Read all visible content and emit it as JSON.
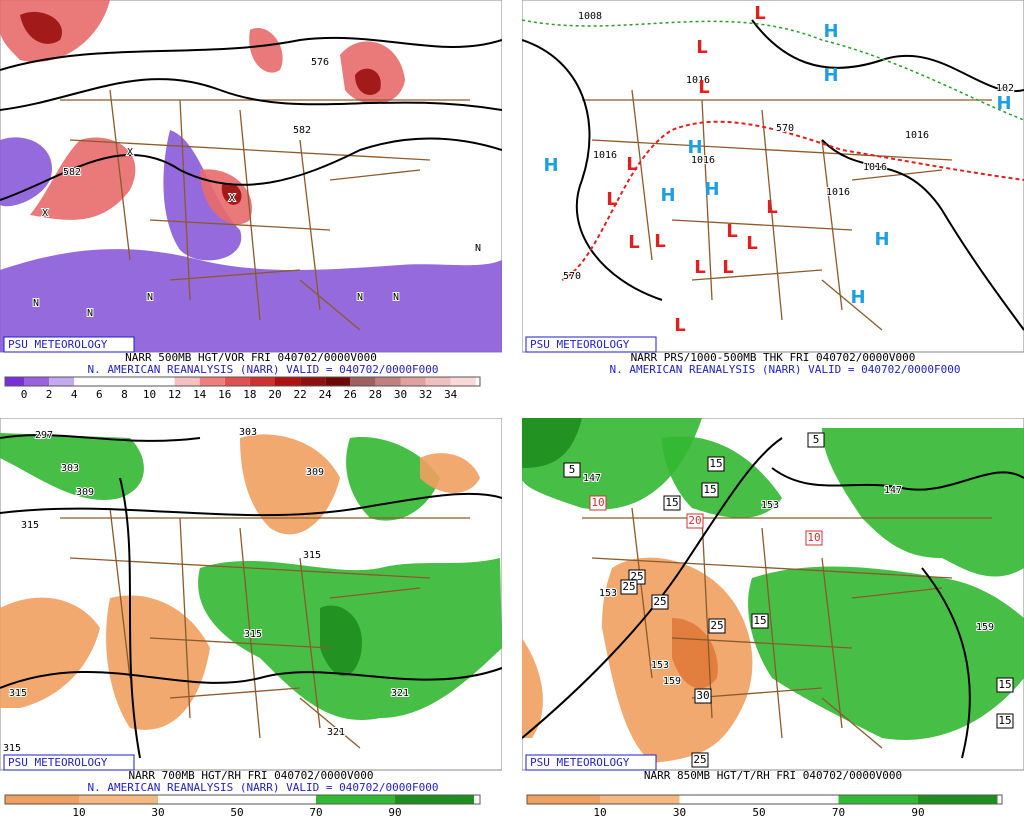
{
  "panels": [
    {
      "badge": "PSU METEOROLOGY",
      "caption_line1": "NARR 500MB HGT/VOR FRI 040702/0000V000",
      "caption_line2": "N. AMERICAN REANALYSIS (NARR) VALID = 040702/0000F000",
      "colorbar_labels": [
        "0",
        "2",
        "4",
        "6",
        "8",
        "10",
        "12",
        "14",
        "16",
        "18",
        "20",
        "22",
        "24",
        "26",
        "28",
        "30",
        "32",
        "34"
      ],
      "map_labels": [
        "576",
        "582",
        "582",
        "X",
        "X",
        "X",
        "N",
        "N",
        "N",
        "N",
        "N",
        "N"
      ]
    },
    {
      "badge": "PSU METEOROLOGY",
      "caption_line1": "NARR PRS/1000-500MB THK FRI 040702/0000V000",
      "caption_line2": "N. AMERICAN REANALYSIS (NARR) VALID = 040702/0000F000",
      "colorbar_labels": [],
      "map_labels": [
        "1008",
        "1016",
        "1016",
        "1016",
        "1016",
        "1016",
        "1016",
        "570",
        "570",
        "102",
        "H",
        "H",
        "H",
        "H",
        "H",
        "H",
        "H",
        "H",
        "H",
        "L",
        "L",
        "L",
        "L",
        "L",
        "L",
        "L",
        "L",
        "L",
        "L",
        "L",
        "L",
        "L"
      ]
    },
    {
      "badge": "PSU METEOROLOGY",
      "caption_line1": "NARR 700MB HGT/RH FRI 040702/0000V000",
      "caption_line2": "N. AMERICAN REANALYSIS (NARR) VALID = 040702/0000F000",
      "colorbar_labels": [
        "10",
        "30",
        "50",
        "70",
        "90"
      ],
      "map_labels": [
        "297",
        "303",
        "309",
        "315",
        "309",
        "315",
        "315",
        "315",
        "315",
        "321",
        "321",
        "303"
      ]
    },
    {
      "badge": "PSU METEOROLOGY",
      "caption_line1": "NARR 850MB HGT/T/RH FRI 040702/0000V000",
      "colorbar_labels": [
        "10",
        "30",
        "50",
        "70",
        "90"
      ],
      "map_labels": [
        "5",
        "10",
        "15",
        "15",
        "15",
        "20",
        "10",
        "25",
        "25",
        "25",
        "25",
        "15",
        "30",
        "25",
        "15",
        "15",
        "5",
        "147",
        "147",
        "153",
        "153",
        "153",
        "159",
        "159"
      ]
    }
  ]
}
